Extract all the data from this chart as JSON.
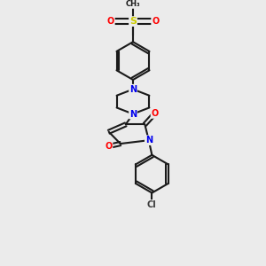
{
  "background_color": "#ebebeb",
  "bond_color": "#1a1a1a",
  "atom_colors": {
    "N": "#0000ee",
    "O": "#ff0000",
    "S": "#cccc00",
    "Cl": "#3a3a3a",
    "C": "#1a1a1a"
  },
  "figsize": [
    3.0,
    3.0
  ],
  "dpi": 100,
  "xlim": [
    0,
    10
  ],
  "ylim": [
    0,
    10
  ]
}
